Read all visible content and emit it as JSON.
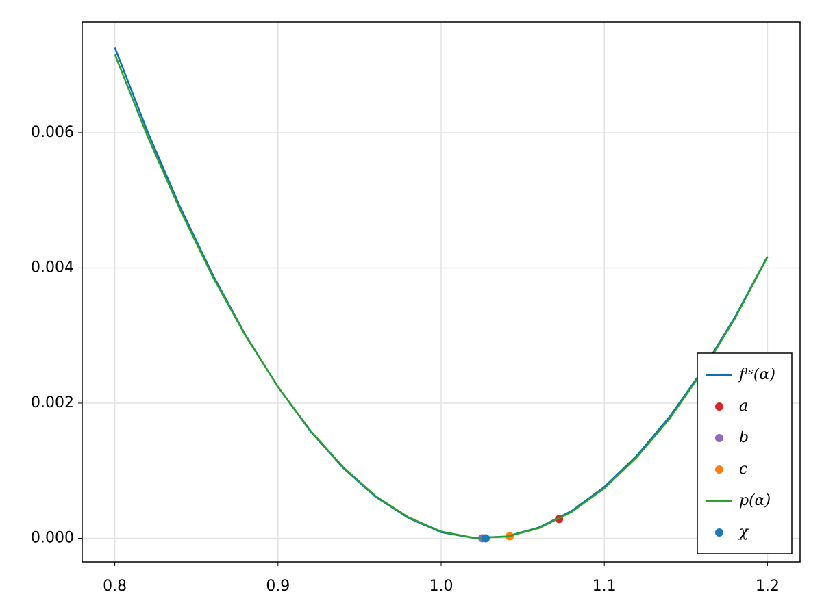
{
  "chart_data": {
    "type": "line",
    "xlim": [
      0.78,
      1.22
    ],
    "ylim": [
      -0.00035,
      0.00764
    ],
    "xticks": [
      0.8,
      0.9,
      {
        "value": 1.0,
        "label": "1.0"
      },
      1.1,
      1.2
    ],
    "yticks": [
      {
        "value": 0,
        "label": "0.000"
      },
      {
        "value": 0.002,
        "label": "0.002"
      },
      {
        "value": 0.004,
        "label": "0.004"
      },
      {
        "value": 0.006,
        "label": "0.006"
      }
    ],
    "grid": true,
    "legend": "bottom-right",
    "series": [
      {
        "name": "fˡˢ(α)",
        "type": "line",
        "color": "#0a6ebd",
        "x": [
          0.8,
          0.82,
          0.84,
          0.86,
          0.88,
          0.9,
          0.92,
          0.94,
          0.96,
          0.98,
          1.0,
          1.02,
          1.04,
          1.06,
          1.08,
          1.1,
          1.12,
          1.14,
          1.16,
          1.18,
          1.2
        ],
        "values": [
          0.00726,
          0.00602,
          0.0049,
          0.0039,
          0.00301,
          0.00224,
          0.00158,
          0.00104,
          0.00061,
          0.0003,
          9e-05,
          5e-06,
          2.7e-05,
          0.00016,
          0.000405,
          0.00076,
          0.001224,
          0.001797,
          0.00248,
          0.00327,
          0.00417
        ]
      },
      {
        "name": "a",
        "type": "scatter",
        "color": "#d62728",
        "x": [
          1.0723
        ],
        "values": [
          0.000284
        ]
      },
      {
        "name": "b",
        "type": "scatter",
        "color": "#9467bd",
        "x": [
          1.0252
        ],
        "values": [
          0.0
        ]
      },
      {
        "name": "c",
        "type": "scatter",
        "color": "#ff7f0e",
        "x": [
          1.042
        ],
        "values": [
          3e-05
        ]
      },
      {
        "name": "p(α)",
        "type": "line",
        "color": "#2ca02c",
        "x": [
          0.8,
          0.82,
          0.84,
          0.86,
          0.88,
          0.9,
          0.92,
          0.94,
          0.96,
          0.98,
          1.0,
          1.02,
          1.04,
          1.06,
          1.08,
          1.1,
          1.12,
          1.14,
          1.16,
          1.18,
          1.2
        ],
        "values": [
          0.00716,
          0.00595,
          0.00486,
          0.00387,
          0.003,
          0.00224,
          0.00159,
          0.00105,
          0.00062,
          0.00031,
          0.0001,
          7e-06,
          2.3e-05,
          0.00015,
          0.00039,
          0.00074,
          0.0012,
          0.00177,
          0.00246,
          0.00325,
          0.00416
        ]
      },
      {
        "name": "χ",
        "type": "scatter",
        "color": "#1f77b4",
        "x": [
          1.0273
        ],
        "values": [
          0.0
        ]
      }
    ]
  }
}
